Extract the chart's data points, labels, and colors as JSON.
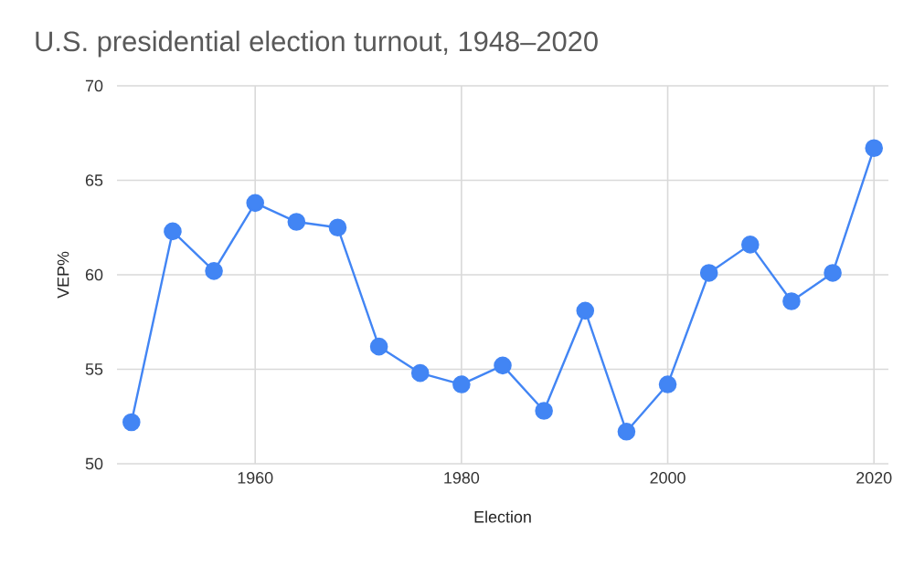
{
  "chart_data": {
    "type": "line",
    "title": "U.S. presidential election turnout, 1948–2020",
    "xlabel": "Election",
    "ylabel": "VEP%",
    "x": [
      1948,
      1952,
      1956,
      1960,
      1964,
      1968,
      1972,
      1976,
      1980,
      1984,
      1988,
      1992,
      1996,
      2000,
      2004,
      2008,
      2012,
      2016,
      2020
    ],
    "series": [
      {
        "color": "#4285f4",
        "values": [
          52.2,
          62.3,
          60.2,
          63.8,
          62.8,
          62.5,
          56.2,
          54.8,
          54.2,
          55.2,
          52.8,
          58.1,
          51.7,
          54.2,
          60.1,
          61.6,
          58.6,
          60.1,
          66.7
        ]
      }
    ],
    "xlim": [
      1946.6,
      2021.4
    ],
    "ylim": [
      50,
      70
    ],
    "xticks": [
      1960,
      1980,
      2000,
      2020
    ],
    "yticks": [
      50,
      55,
      60,
      65,
      70
    ],
    "grid": true,
    "marker": "circle",
    "line_style": "solid"
  }
}
